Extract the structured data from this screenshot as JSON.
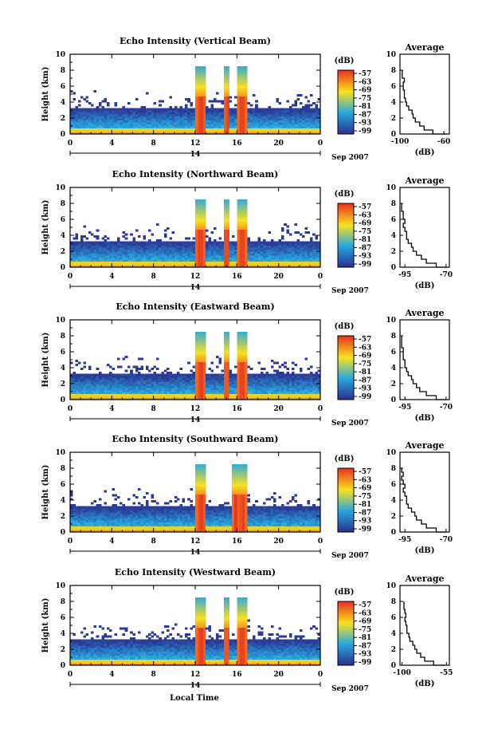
{
  "figure": {
    "bottom_label": "Local Time",
    "date_label": "Sep 2007",
    "day_label": "14",
    "colorbar_unit": "(dB)",
    "profile_title": "Average",
    "profile_xlabel": "(dB)",
    "height_label": "Height (km)"
  },
  "palette": {
    "low": "#2b2f8f",
    "mid": "#26a7e0",
    "high": "#f9e11e",
    "peak": "#e8301f"
  },
  "chart_data": [
    {
      "type": "heatmap",
      "title": "Echo Intensity (Vertical Beam)",
      "xlabel": "Local Time",
      "ylabel": "Height (km)",
      "x_ticks": [
        "0",
        "4",
        "8",
        "12",
        "16",
        "20",
        "0"
      ],
      "xlim": [
        0,
        24
      ],
      "y_ticks": [
        "0",
        "2",
        "4",
        "6",
        "8",
        "10"
      ],
      "ylim": [
        0,
        10
      ],
      "colorbar_ticks": [
        "-57",
        "-63",
        "-69",
        "-75",
        "-81",
        "-87",
        "-93",
        "-99"
      ],
      "colorbar_unit": "(dB)",
      "rain_intervals_hours": [
        [
          12.1,
          13.0
        ],
        [
          14.8,
          15.3
        ],
        [
          16.1,
          16.9
        ]
      ],
      "profile": {
        "title": "Average",
        "xlabel": "(dB)",
        "x_ticks": [
          "-100",
          "-60"
        ],
        "xlim": [
          -100,
          -55
        ],
        "height_km": [
          0,
          0.5,
          1,
          1.5,
          2,
          2.5,
          3,
          3.5,
          4,
          4.5,
          5,
          5.5,
          6,
          6.5,
          7,
          7.5,
          8
        ],
        "mean_db": [
          -57,
          -70,
          -78,
          -82,
          -86,
          -88,
          -89,
          -92,
          -94,
          -95,
          -96,
          -96,
          -97,
          -97,
          -96,
          -98,
          -98
        ]
      }
    },
    {
      "type": "heatmap",
      "title": "Echo Intensity (Northward Beam)",
      "xlabel": "Local Time",
      "ylabel": "Height (km)",
      "x_ticks": [
        "0",
        "4",
        "8",
        "12",
        "16",
        "20",
        "0"
      ],
      "xlim": [
        0,
        24
      ],
      "y_ticks": [
        "0",
        "2",
        "4",
        "6",
        "8",
        "10"
      ],
      "ylim": [
        0,
        10
      ],
      "colorbar_ticks": [
        "-57",
        "-63",
        "-69",
        "-75",
        "-81",
        "-87",
        "-93",
        "-99"
      ],
      "colorbar_unit": "(dB)",
      "rain_intervals_hours": [
        [
          12.0,
          13.0
        ],
        [
          14.7,
          15.3
        ],
        [
          16.1,
          16.9
        ]
      ],
      "profile": {
        "title": "Average",
        "xlabel": "(dB)",
        "x_ticks": [
          "-95",
          "-70"
        ],
        "xlim": [
          -98,
          -68
        ],
        "height_km": [
          0,
          0.5,
          1,
          1.5,
          2,
          2.5,
          3,
          3.5,
          4,
          4.5,
          5,
          5.5,
          6,
          6.5,
          7,
          7.5,
          8
        ],
        "mean_db": [
          -70,
          -76,
          -82,
          -85,
          -88,
          -90,
          -91,
          -93,
          -94,
          -94,
          -95,
          -96,
          -95,
          -96,
          -96,
          -97,
          -97
        ]
      }
    },
    {
      "type": "heatmap",
      "title": "Echo Intensity (Eastward Beam)",
      "xlabel": "Local Time",
      "ylabel": "Height (km)",
      "x_ticks": [
        "0",
        "4",
        "8",
        "12",
        "16",
        "20",
        "0"
      ],
      "xlim": [
        0,
        24
      ],
      "y_ticks": [
        "0",
        "2",
        "4",
        "6",
        "8",
        "10"
      ],
      "ylim": [
        0,
        10
      ],
      "colorbar_ticks": [
        "-57",
        "-63",
        "-69",
        "-75",
        "-81",
        "-87",
        "-93",
        "-99"
      ],
      "colorbar_unit": "(dB)",
      "rain_intervals_hours": [
        [
          12.1,
          13.0
        ],
        [
          14.8,
          15.2
        ],
        [
          16.1,
          16.9
        ]
      ],
      "profile": {
        "title": "Average",
        "xlabel": "(dB)",
        "x_ticks": [
          "-95",
          "-70"
        ],
        "xlim": [
          -98,
          -68
        ],
        "height_km": [
          0,
          0.5,
          1,
          1.5,
          2,
          2.5,
          3,
          3.5,
          4,
          4.5,
          5,
          5.5,
          6,
          6.5,
          7,
          7.5,
          8
        ],
        "mean_db": [
          -70,
          -76,
          -82,
          -86,
          -88,
          -90,
          -91,
          -93,
          -94,
          -95,
          -95,
          -96,
          -96,
          -96,
          -97,
          -97,
          -97
        ]
      }
    },
    {
      "type": "heatmap",
      "title": "Echo Intensity (Southward Beam)",
      "xlabel": "Local Time",
      "ylabel": "Height (km)",
      "x_ticks": [
        "0",
        "4",
        "8",
        "12",
        "16",
        "20",
        "0"
      ],
      "xlim": [
        0,
        24
      ],
      "y_ticks": [
        "0",
        "2",
        "4",
        "6",
        "8",
        "10"
      ],
      "ylim": [
        0,
        10
      ],
      "colorbar_ticks": [
        "-57",
        "-63",
        "-69",
        "-75",
        "-81",
        "-87",
        "-93",
        "-99"
      ],
      "colorbar_unit": "(dB)",
      "rain_intervals_hours": [
        [
          12.1,
          13.0
        ],
        [
          15.6,
          16.2
        ],
        [
          16.2,
          16.9
        ]
      ],
      "profile": {
        "title": "Average",
        "xlabel": "(dB)",
        "x_ticks": [
          "-95",
          "-70"
        ],
        "xlim": [
          -98,
          -68
        ],
        "height_km": [
          0,
          0.5,
          1,
          1.5,
          2,
          2.5,
          3,
          3.5,
          4,
          4.5,
          5,
          5.5,
          6,
          6.5,
          7,
          7.5,
          8
        ],
        "mean_db": [
          -70,
          -76,
          -82,
          -85,
          -88,
          -89,
          -91,
          -93,
          -94,
          -94,
          -95,
          -96,
          -95,
          -96,
          -97,
          -96,
          -97
        ]
      }
    },
    {
      "type": "heatmap",
      "title": "Echo Intensity (Westward Beam)",
      "xlabel": "Local Time",
      "ylabel": "Height (km)",
      "x_ticks": [
        "0",
        "4",
        "8",
        "12",
        "16",
        "20",
        "0"
      ],
      "xlim": [
        0,
        24
      ],
      "y_ticks": [
        "0",
        "2",
        "4",
        "6",
        "8",
        "10"
      ],
      "ylim": [
        0,
        10
      ],
      "colorbar_ticks": [
        "-57",
        "-63",
        "-69",
        "-75",
        "-81",
        "-87",
        "-93",
        "-99"
      ],
      "colorbar_unit": "(dB)",
      "rain_intervals_hours": [
        [
          12.1,
          13.0
        ],
        [
          14.8,
          15.2
        ],
        [
          16.1,
          16.9
        ]
      ],
      "profile": {
        "title": "Average",
        "xlabel": "(dB)",
        "x_ticks": [
          "-100",
          "-55"
        ],
        "xlim": [
          -102,
          -52
        ],
        "height_km": [
          0,
          0.5,
          1,
          1.5,
          2,
          2.5,
          3,
          3.5,
          4,
          4.5,
          5,
          5.5,
          6,
          6.5,
          7,
          7.5,
          8
        ],
        "mean_db": [
          -57,
          -68,
          -77,
          -81,
          -85,
          -87,
          -89,
          -92,
          -93,
          -95,
          -95,
          -96,
          -97,
          -96,
          -97,
          -98,
          -98
        ]
      }
    }
  ]
}
